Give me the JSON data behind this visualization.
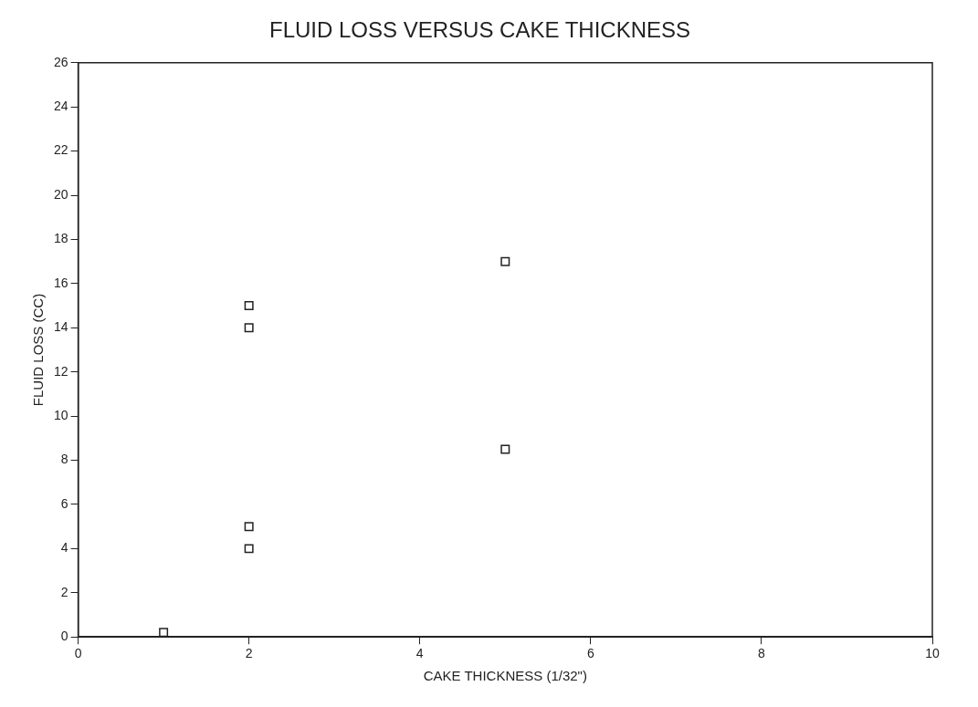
{
  "chart_data": {
    "type": "scatter",
    "title": "FLUID LOSS VERSUS CAKE THICKNESS",
    "xlabel": "CAKE THICKNESS (1/32\")",
    "ylabel": "FLUID LOSS (CC)",
    "x": [
      1,
      2,
      2,
      2,
      2,
      5,
      5
    ],
    "values": [
      0.2,
      15,
      14,
      5,
      4,
      17,
      8.5
    ],
    "color": "#222222",
    "marker": "square",
    "xlim": [
      0,
      10
    ],
    "xticks": [
      0,
      2,
      4,
      6,
      8,
      10
    ],
    "ylim": [
      0,
      26
    ],
    "yticks": [
      0,
      2,
      4,
      6,
      8,
      10,
      12,
      14,
      16,
      18,
      20,
      22,
      24,
      26
    ],
    "grid": false,
    "legend": false
  }
}
